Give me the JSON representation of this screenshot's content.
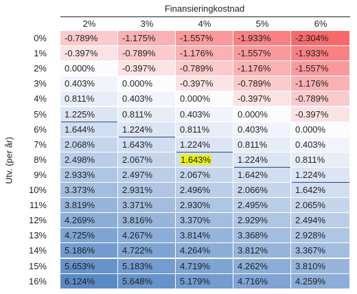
{
  "col_title": "Finansieringkostnad",
  "row_title": "Utv. (per år)",
  "columns": [
    "2%",
    "3%",
    "4%",
    "5%",
    "6%"
  ],
  "rows": [
    "0%",
    "1%",
    "2%",
    "3%",
    "4%",
    "5%",
    "6%",
    "7%",
    "8%",
    "9%",
    "10%",
    "11%",
    "12%",
    "13%",
    "14%",
    "15%",
    "16%"
  ],
  "values": [
    [
      "-0.789%",
      "-1.175%",
      "-1.557%",
      "-1.933%",
      "-2.304%"
    ],
    [
      "-0.397%",
      "-0.789%",
      "-1.176%",
      "-1.557%",
      "-1.933%"
    ],
    [
      "0.000%",
      "-0.397%",
      "-0.789%",
      "-1.176%",
      "-1.557%"
    ],
    [
      "0.403%",
      "0.000%",
      "-0.397%",
      "-0.789%",
      "-1.176%"
    ],
    [
      "0.811%",
      "0.403%",
      "0.000%",
      "-0.397%",
      "-0.789%"
    ],
    [
      "1.225%",
      "0.811%",
      "0.403%",
      "0.000%",
      "-0.397%"
    ],
    [
      "1.644%",
      "1.224%",
      "0.811%",
      "0.403%",
      "0.000%"
    ],
    [
      "2.068%",
      "1.643%",
      "1.224%",
      "0.811%",
      "0.403%"
    ],
    [
      "2.498%",
      "2.067%",
      "1.643%",
      "1.224%",
      "0.811%"
    ],
    [
      "2.933%",
      "2.497%",
      "2.067%",
      "1.642%",
      "1.224%"
    ],
    [
      "3.373%",
      "2.931%",
      "2.496%",
      "2.066%",
      "1.642%"
    ],
    [
      "3.819%",
      "3.371%",
      "2.930%",
      "2.495%",
      "2.065%"
    ],
    [
      "4.269%",
      "3.816%",
      "3.370%",
      "2.929%",
      "2.494%"
    ],
    [
      "4.725%",
      "4.267%",
      "3.814%",
      "3.368%",
      "2.928%"
    ],
    [
      "5.186%",
      "4.722%",
      "4.264%",
      "3.812%",
      "3.367%"
    ],
    [
      "5.653%",
      "5.183%",
      "4.719%",
      "4.262%",
      "3.810%"
    ],
    [
      "6.124%",
      "5.648%",
      "5.179%",
      "4.716%",
      "4.259%"
    ]
  ],
  "highlighted_cell": {
    "row": 8,
    "col": 2
  },
  "underlined_cells": [
    {
      "row": 5,
      "col": 0
    },
    {
      "row": 6,
      "col": 1
    },
    {
      "row": 7,
      "col": 2
    },
    {
      "row": 8,
      "col": 3
    },
    {
      "row": 9,
      "col": 4
    }
  ],
  "colors": {
    "negative_max": "#f8696b",
    "neutral": "#fcfcff",
    "positive_max": "#5a8ac6",
    "highlight": "#e8f21c"
  }
}
